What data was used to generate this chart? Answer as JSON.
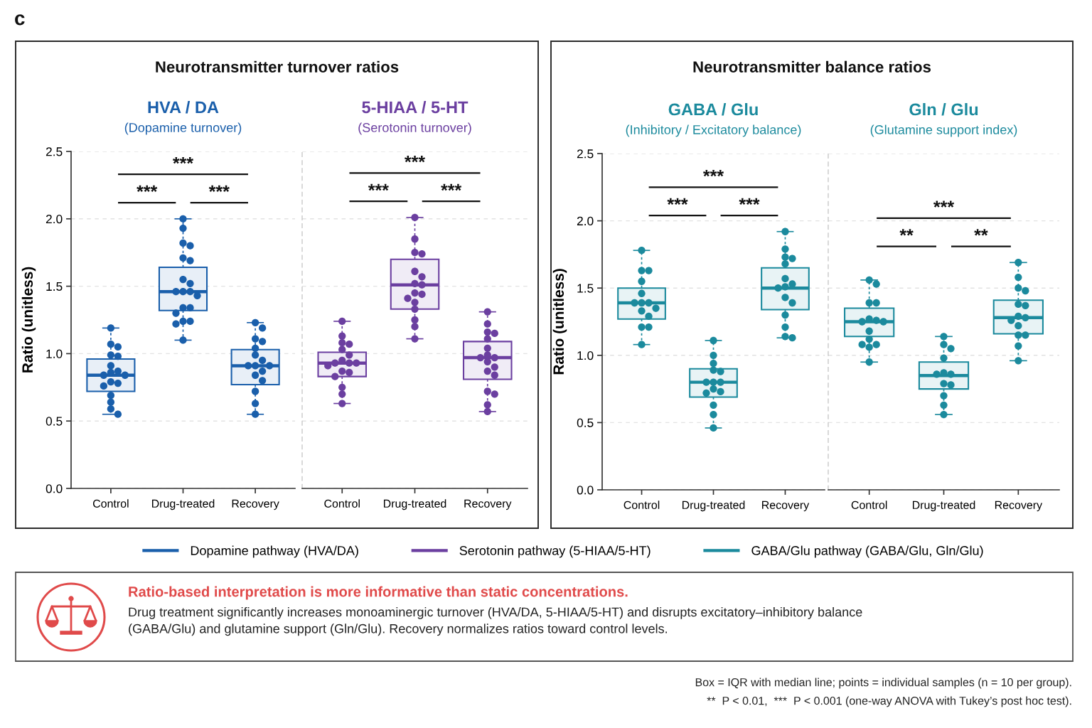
{
  "chart_data": [
    {
      "type": "box",
      "title": "HVA / DA",
      "subtitle": "(Dopamine turnover)",
      "ylabel": "Ratio (unitless)",
      "categories": [
        "Control",
        "Drug-treated",
        "Recovery"
      ],
      "ylim": [
        0,
        2.5
      ],
      "yticks": [
        {
          "value": 0,
          "label": "0.0"
        },
        0.5,
        {
          "value": 1,
          "label": "1.0"
        },
        1.5,
        {
          "value": 2,
          "label": "2.0"
        },
        2.5
      ],
      "grid": "y",
      "legend": "bottom",
      "annotations": [
        "c",
        "Neurotransmitter turnover ratios",
        "***",
        "***",
        "***"
      ],
      "series": [
        {
          "name": "Dopamine pathway (HVA/DA)",
          "color": "#1a5fab",
          "boxes": [
            {
              "low": 0.55,
              "q1": 0.72,
              "median": 0.84,
              "q3": 0.96,
              "high": 1.19
            },
            {
              "low": 1.1,
              "q1": 1.32,
              "median": 1.46,
              "q3": 1.64,
              "high": 2.0
            },
            {
              "low": 0.55,
              "q1": 0.77,
              "median": 0.91,
              "q3": 1.03,
              "high": 1.23
            }
          ]
        },
        {
          "type": "scatter",
          "color": "#1a5fab",
          "marker": "circle",
          "x": [
            "Control",
            "Control",
            "Control",
            "Control",
            "Control",
            "Control",
            "Control",
            "Control",
            "Control",
            "Control",
            "Control",
            "Control",
            "Control",
            "Control",
            "Control",
            "Control",
            "Control",
            "Drug-treated",
            "Drug-treated",
            "Drug-treated",
            "Drug-treated",
            "Drug-treated",
            "Drug-treated",
            "Drug-treated",
            "Drug-treated",
            "Drug-treated",
            "Drug-treated",
            "Drug-treated",
            "Drug-treated",
            "Drug-treated",
            "Drug-treated",
            "Drug-treated",
            "Drug-treated",
            "Drug-treated",
            "Drug-treated",
            "Drug-treated",
            "Recovery",
            "Recovery",
            "Recovery",
            "Recovery",
            "Recovery",
            "Recovery",
            "Recovery",
            "Recovery",
            "Recovery",
            "Recovery",
            "Recovery",
            "Recovery",
            "Recovery",
            "Recovery",
            "Recovery",
            "Recovery"
          ],
          "values": [
            1.19,
            1.07,
            1.05,
            0.99,
            0.98,
            0.91,
            0.87,
            0.86,
            0.84,
            0.84,
            0.79,
            0.78,
            0.76,
            0.69,
            0.64,
            0.59,
            0.55,
            2.0,
            1.93,
            1.82,
            1.8,
            1.71,
            1.69,
            1.55,
            1.52,
            1.46,
            1.46,
            1.46,
            1.43,
            1.34,
            1.34,
            1.3,
            1.24,
            1.24,
            1.22,
            1.1,
            1.23,
            1.19,
            1.11,
            1.09,
            1.04,
            0.99,
            0.95,
            0.91,
            0.91,
            0.91,
            0.87,
            0.84,
            0.8,
            0.72,
            0.63,
            0.55
          ]
        }
      ]
    },
    {
      "type": "box",
      "title": "5-HIAA / 5-HT",
      "subtitle": "(Serotonin turnover)",
      "categories": [
        "Control",
        "Drug-treated",
        "Recovery"
      ],
      "ylim": [
        0,
        2.5
      ],
      "yticks": [
        {
          "value": 0,
          "label": "0.0"
        },
        0.5,
        {
          "value": 1,
          "label": "1.0"
        },
        1.5,
        {
          "value": 2,
          "label": "2.0"
        },
        2.5
      ],
      "tick_labels": "x",
      "grid": "y",
      "legend": "bottom",
      "annotations": [
        "***",
        "***",
        "***"
      ],
      "series": [
        {
          "name": "Serotonin pathway (5-HIAA/5-HT)",
          "color": "#6b3fa0",
          "boxes": [
            {
              "low": 0.63,
              "q1": 0.83,
              "median": 0.93,
              "q3": 1.01,
              "high": 1.24
            },
            {
              "low": 1.11,
              "q1": 1.33,
              "median": 1.51,
              "q3": 1.7,
              "high": 2.01
            },
            {
              "low": 0.57,
              "q1": 0.81,
              "median": 0.97,
              "q3": 1.09,
              "high": 1.31
            }
          ]
        },
        {
          "type": "scatter",
          "color": "#6b3fa0",
          "marker": "circle",
          "x": [
            "Control",
            "Control",
            "Control",
            "Control",
            "Control",
            "Control",
            "Control",
            "Control",
            "Control",
            "Control",
            "Control",
            "Control",
            "Control",
            "Control",
            "Control",
            "Control",
            "Control",
            "Drug-treated",
            "Drug-treated",
            "Drug-treated",
            "Drug-treated",
            "Drug-treated",
            "Drug-treated",
            "Drug-treated",
            "Drug-treated",
            "Drug-treated",
            "Drug-treated",
            "Drug-treated",
            "Drug-treated",
            "Drug-treated",
            "Drug-treated",
            "Drug-treated",
            "Drug-treated",
            "Recovery",
            "Recovery",
            "Recovery",
            "Recovery",
            "Recovery",
            "Recovery",
            "Recovery",
            "Recovery",
            "Recovery",
            "Recovery",
            "Recovery",
            "Recovery",
            "Recovery",
            "Recovery",
            "Recovery",
            "Recovery",
            "Recovery"
          ],
          "values": [
            1.24,
            1.13,
            1.08,
            1.07,
            1.03,
            0.99,
            0.95,
            0.93,
            0.93,
            0.93,
            0.91,
            0.87,
            0.86,
            0.83,
            0.75,
            0.7,
            0.63,
            2.01,
            1.85,
            1.75,
            1.74,
            1.61,
            1.57,
            1.52,
            1.51,
            1.45,
            1.44,
            1.41,
            1.38,
            1.33,
            1.25,
            1.2,
            1.11,
            1.31,
            1.22,
            1.16,
            1.15,
            1.11,
            1.04,
            0.99,
            0.97,
            0.97,
            0.94,
            0.9,
            0.87,
            0.84,
            0.72,
            0.7,
            0.62,
            0.57
          ]
        }
      ]
    },
    {
      "type": "box",
      "title": "GABA / Glu",
      "subtitle": "(Inhibitory / Excitatory balance)",
      "ylabel": "Ratio (unitless)",
      "categories": [
        "Control",
        "Drug-treated",
        "Recovery"
      ],
      "ylim": [
        0,
        2.5
      ],
      "yticks": [
        {
          "value": 0,
          "label": "0.0"
        },
        0.5,
        {
          "value": 1,
          "label": "1.0"
        },
        1.5,
        {
          "value": 2,
          "label": "2.0"
        },
        2.5
      ],
      "grid": "y",
      "legend": "bottom",
      "annotations": [
        "Neurotransmitter balance ratios",
        "***",
        "***",
        "***"
      ],
      "series": [
        {
          "name": "GABA/Glu pathway (GABA/Glu, Gln/Glu)",
          "color": "#1b8a9d",
          "boxes": [
            {
              "low": 1.08,
              "q1": 1.27,
              "median": 1.39,
              "q3": 1.5,
              "high": 1.78
            },
            {
              "low": 0.46,
              "q1": 0.69,
              "median": 0.8,
              "q3": 0.9,
              "high": 1.11
            },
            {
              "low": 1.13,
              "q1": 1.34,
              "median": 1.5,
              "q3": 1.65,
              "high": 1.92
            }
          ]
        },
        {
          "type": "scatter",
          "color": "#1b8a9d",
          "marker": "circle",
          "x": [
            "Control",
            "Control",
            "Control",
            "Control",
            "Control",
            "Control",
            "Control",
            "Control",
            "Control",
            "Control",
            "Control",
            "Control",
            "Control",
            "Control",
            "Drug-treated",
            "Drug-treated",
            "Drug-treated",
            "Drug-treated",
            "Drug-treated",
            "Drug-treated",
            "Drug-treated",
            "Drug-treated",
            "Drug-treated",
            "Drug-treated",
            "Drug-treated",
            "Drug-treated",
            "Drug-treated",
            "Drug-treated",
            "Recovery",
            "Recovery",
            "Recovery",
            "Recovery",
            "Recovery",
            "Recovery",
            "Recovery",
            "Recovery",
            "Recovery",
            "Recovery",
            "Recovery",
            "Recovery",
            "Recovery",
            "Recovery",
            "Recovery"
          ],
          "values": [
            1.78,
            1.63,
            1.63,
            1.55,
            1.46,
            1.39,
            1.39,
            1.39,
            1.35,
            1.33,
            1.29,
            1.21,
            1.21,
            1.08,
            1.11,
            1.0,
            0.94,
            0.89,
            0.88,
            0.8,
            0.8,
            0.8,
            0.75,
            0.73,
            0.72,
            0.63,
            0.56,
            0.46,
            1.92,
            1.79,
            1.73,
            1.72,
            1.68,
            1.57,
            1.53,
            1.51,
            1.5,
            1.43,
            1.39,
            1.3,
            1.21,
            1.14,
            1.13
          ]
        }
      ]
    },
    {
      "type": "box",
      "title": "Gln / Glu",
      "subtitle": "(Glutamine support index)",
      "categories": [
        "Control",
        "Drug-treated",
        "Recovery"
      ],
      "ylim": [
        0,
        2.5
      ],
      "yticks": [
        {
          "value": 0,
          "label": "0.0"
        },
        0.5,
        {
          "value": 1,
          "label": "1.0"
        },
        1.5,
        {
          "value": 2,
          "label": "2.0"
        },
        2.5
      ],
      "tick_labels": "x",
      "grid": "y",
      "legend": "bottom",
      "annotations": [
        "**",
        "**",
        "***"
      ],
      "series": [
        {
          "name": "GABA/Glu pathway (GABA/Glu, Gln/Glu)",
          "color": "#1b8a9d",
          "boxes": [
            {
              "low": 0.95,
              "q1": 1.14,
              "median": 1.25,
              "q3": 1.35,
              "high": 1.56
            },
            {
              "low": 0.56,
              "q1": 0.75,
              "median": 0.85,
              "q3": 0.95,
              "high": 1.14
            },
            {
              "low": 0.96,
              "q1": 1.16,
              "median": 1.28,
              "q3": 1.41,
              "high": 1.69
            }
          ]
        },
        {
          "type": "scatter",
          "color": "#1b8a9d",
          "marker": "circle",
          "x": [
            "Control",
            "Control",
            "Control",
            "Control",
            "Control",
            "Control",
            "Control",
            "Control",
            "Control",
            "Control",
            "Control",
            "Control",
            "Control",
            "Control",
            "Drug-treated",
            "Drug-treated",
            "Drug-treated",
            "Drug-treated",
            "Drug-treated",
            "Drug-treated",
            "Drug-treated",
            "Drug-treated",
            "Drug-treated",
            "Drug-treated",
            "Drug-treated",
            "Drug-treated",
            "Recovery",
            "Recovery",
            "Recovery",
            "Recovery",
            "Recovery",
            "Recovery",
            "Recovery",
            "Recovery",
            "Recovery",
            "Recovery",
            "Recovery",
            "Recovery",
            "Recovery",
            "Recovery"
          ],
          "values": [
            1.56,
            1.53,
            1.39,
            1.39,
            1.27,
            1.26,
            1.25,
            1.25,
            1.18,
            1.12,
            1.08,
            1.08,
            1.06,
            0.95,
            1.14,
            1.08,
            1.05,
            0.98,
            0.87,
            0.86,
            0.86,
            0.79,
            0.78,
            0.7,
            0.63,
            0.56,
            1.69,
            1.58,
            1.5,
            1.48,
            1.38,
            1.37,
            1.29,
            1.28,
            1.26,
            1.22,
            1.15,
            1.15,
            1.07,
            0.96
          ]
        }
      ]
    },
    {
      "type": "other",
      "title": "Ratio-based interpretation is more informative than static concentrations.",
      "annotations": [
        "Drug treatment significantly increases monoaminergic turnover (HVA/DA, 5-HIAA/5-HT) and disrupts excitatory–inhibitory balance\n(GABA/Glu) and glutamine support (Gln/Glu). Recovery normalizes ratios toward control levels.",
        "Box = IQR with median line; points = individual samples (n = 10 per group).",
        "**  P < 0.01,  ***  P < 0.001 (one-way ANOVA with Tukey’s post hoc test)."
      ]
    }
  ]
}
